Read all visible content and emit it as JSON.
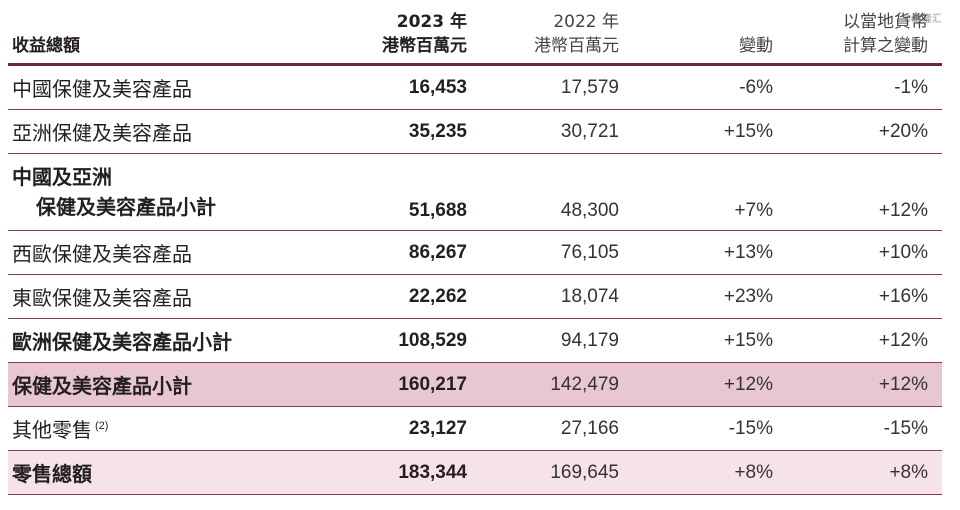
{
  "watermark": "©格隆汇",
  "header": {
    "label": "收益總額",
    "col_2023_year": "2023 年",
    "col_2023_unit": "港幣百萬元",
    "col_2022_year": "2022 年",
    "col_2022_unit": "港幣百萬元",
    "col_change": "變動",
    "col_local_line1": "以當地貨幣",
    "col_local_line2": "計算之變動"
  },
  "rows": [
    {
      "label": "中國保健及美容產品",
      "v2023": "16,453",
      "v2022": "17,579",
      "change": "-6%",
      "local": "-1%"
    },
    {
      "label": "亞洲保健及美容產品",
      "v2023": "35,235",
      "v2022": "30,721",
      "change": "+15%",
      "local": "+20%"
    },
    {
      "label_line1": "中國及亞洲",
      "label_line2": "保健及美容產品小計",
      "v2023": "51,688",
      "v2022": "48,300",
      "change": "+7%",
      "local": "+12%"
    },
    {
      "label": "西歐保健及美容產品",
      "v2023": "86,267",
      "v2022": "76,105",
      "change": "+13%",
      "local": "+10%"
    },
    {
      "label": "東歐保健及美容產品",
      "v2023": "22,262",
      "v2022": "18,074",
      "change": "+23%",
      "local": "+16%"
    },
    {
      "label": "歐洲保健及美容產品小計",
      "v2023": "108,529",
      "v2022": "94,179",
      "change": "+15%",
      "local": "+12%"
    },
    {
      "label": "保健及美容產品小計",
      "v2023": "160,217",
      "v2022": "142,479",
      "change": "+12%",
      "local": "+12%"
    },
    {
      "label": "其他零售",
      "note": "(2)",
      "v2023": "23,127",
      "v2022": "27,166",
      "change": "-15%",
      "local": "-15%"
    },
    {
      "label": "零售總額",
      "v2023": "183,344",
      "v2022": "169,645",
      "change": "+8%",
      "local": "+8%"
    }
  ]
}
